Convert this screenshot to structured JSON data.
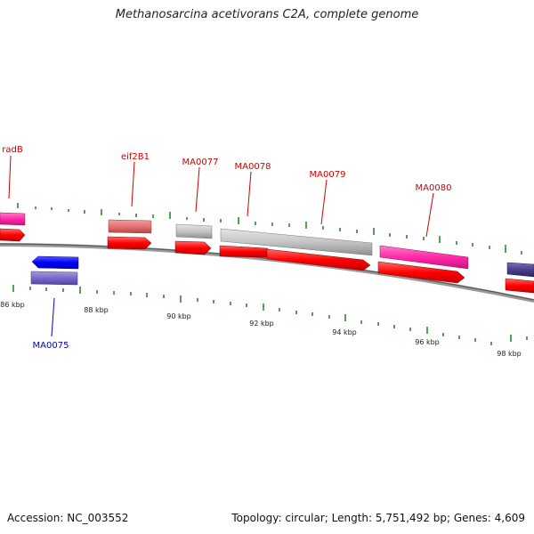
{
  "title": "Methanosarcina acetivorans C2A, complete genome",
  "footer": {
    "accession": "Accession: NC_003552",
    "summary": "Topology: circular; Length: 5,751,492 bp; Genes: 4,609"
  },
  "colors": {
    "backbone": "#777777",
    "tick": "#2a8a2a",
    "cds": "#ff0000",
    "gene_pink": "#ff2aa8",
    "gene_salmon": "#e87070",
    "gene_grey": "#c4c4c4",
    "gene_blue": "#0000ff",
    "gene_purple": "#7a68c8",
    "gene_indigo": "#4a3f8c",
    "label_forward": "#cc0000",
    "label_reverse": "#0000cc"
  },
  "scale_labels": [
    "86 kbp",
    "88 kbp",
    "90 kbp",
    "92 kbp",
    "94 kbp",
    "96 kbp",
    "98 kbp"
  ],
  "gene_labels": [
    {
      "id": "radB",
      "text": "radB"
    },
    {
      "id": "eif2B1",
      "text": "eif2B1"
    },
    {
      "id": "MA0077",
      "text": "MA0077"
    },
    {
      "id": "MA0078",
      "text": "MA0078"
    },
    {
      "id": "MA0079",
      "text": "MA0079"
    },
    {
      "id": "MA0080",
      "text": "MA0080"
    },
    {
      "id": "MA0075",
      "text": "MA0075"
    }
  ]
}
